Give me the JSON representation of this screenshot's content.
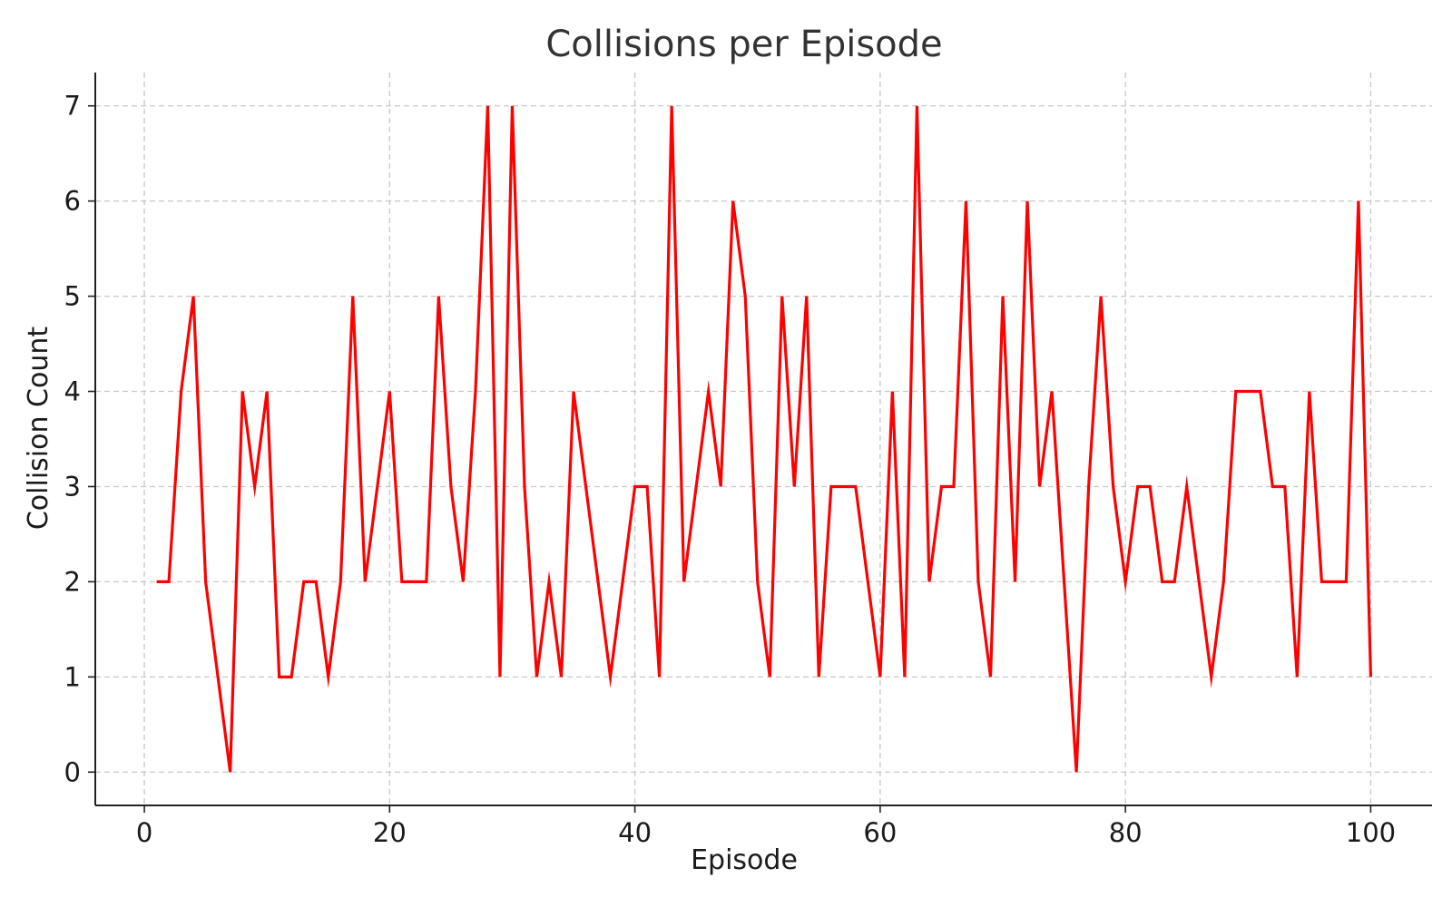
{
  "chart_data": {
    "type": "line",
    "title": "Collisions per Episode",
    "xlabel": "Episode",
    "ylabel": "Collision Count",
    "xlim": [
      -4,
      105
    ],
    "ylim": [
      -0.35,
      7.35
    ],
    "xticks": [
      0,
      20,
      40,
      60,
      80,
      100
    ],
    "yticks": [
      0,
      1,
      2,
      3,
      4,
      5,
      6,
      7
    ],
    "grid": true,
    "colors": {
      "line": "#ff0000"
    },
    "series": [
      {
        "x": [
          1,
          2,
          3,
          4,
          5,
          6,
          7,
          8,
          9,
          10,
          11,
          12,
          13,
          14,
          15,
          16,
          17,
          18,
          19,
          20,
          21,
          22,
          23,
          24,
          25,
          26,
          27,
          28,
          29,
          30,
          31,
          32,
          33,
          34,
          35,
          36,
          37,
          38,
          39,
          40,
          41,
          42,
          43,
          44,
          45,
          46,
          47,
          48,
          49,
          50,
          51,
          52,
          53,
          54,
          55,
          56,
          57,
          58,
          59,
          60,
          61,
          62,
          63,
          64,
          65,
          66,
          67,
          68,
          69,
          70,
          71,
          72,
          73,
          74,
          75,
          76,
          77,
          78,
          79,
          80,
          81,
          82,
          83,
          84,
          85,
          86,
          87,
          88,
          89,
          90,
          91,
          92,
          93,
          94,
          95,
          96,
          97,
          98,
          99,
          100
        ],
        "values": [
          2,
          2,
          4,
          5,
          2,
          1,
          0,
          4,
          3,
          4,
          1,
          1,
          2,
          2,
          1,
          2,
          5,
          2,
          3,
          4,
          2,
          2,
          2,
          5,
          3,
          2,
          4,
          7,
          1,
          7,
          3,
          1,
          2,
          1,
          4,
          3,
          2,
          1,
          2,
          3,
          3,
          1,
          7,
          2,
          3,
          4,
          3,
          6,
          5,
          2,
          1,
          5,
          3,
          5,
          1,
          3,
          3,
          3,
          2,
          1,
          4,
          1,
          7,
          2,
          3,
          3,
          6,
          2,
          1,
          5,
          2,
          6,
          3,
          4,
          2,
          0,
          3,
          5,
          3,
          2,
          3,
          3,
          2,
          2,
          3,
          2,
          1,
          2,
          4,
          4,
          4,
          3,
          3,
          1,
          4,
          2,
          2,
          2,
          6,
          1
        ]
      }
    ]
  }
}
